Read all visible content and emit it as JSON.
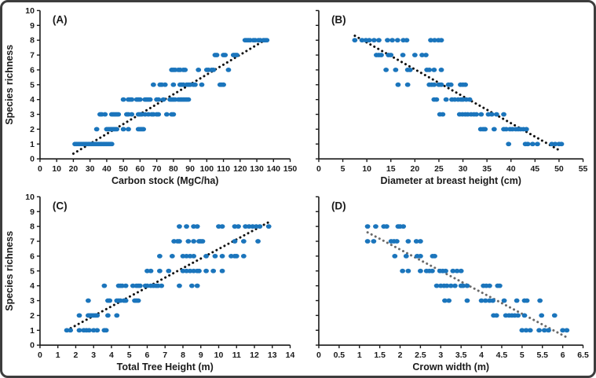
{
  "figure": {
    "background": "#ffffff",
    "border_color": "#3d3d3d"
  },
  "chart_data": [
    {
      "type": "scatter",
      "panel_label": "(A)",
      "xlabel": "Carbon stock (MgC/ha)",
      "ylabel": "Species richness",
      "xlim": [
        0,
        150
      ],
      "ylim": [
        0,
        10
      ],
      "xticks": [
        0,
        10,
        20,
        30,
        40,
        50,
        60,
        70,
        80,
        90,
        100,
        110,
        120,
        130,
        140,
        150
      ],
      "yticks": [
        0,
        1,
        2,
        3,
        4,
        5,
        6,
        7,
        8,
        9,
        10
      ],
      "show_y_tick_labels": true,
      "grid": false,
      "legend": "none",
      "point_color": "#1b75bc",
      "trend_color": "#111111",
      "trend_style": "dotted",
      "trendline": {
        "x1": 20,
        "y1": 0.35,
        "x2": 137,
        "y2": 8.15
      },
      "points_by_richness": {
        "1": [
          21,
          22,
          23,
          24,
          25,
          26,
          27,
          28,
          29,
          30,
          31,
          32,
          33,
          34,
          35,
          36,
          37,
          38,
          39,
          40,
          41,
          42,
          43
        ],
        "2": [
          34,
          40,
          41,
          42,
          43,
          44,
          45,
          46,
          50,
          53,
          59,
          60,
          61,
          62
        ],
        "3": [
          36,
          37,
          39,
          43,
          44,
          45,
          46,
          47,
          52,
          53,
          55,
          59,
          60,
          61,
          63,
          65,
          67,
          68,
          70,
          71,
          76,
          79,
          80
        ],
        "4": [
          50,
          53,
          54,
          55,
          58,
          59,
          60,
          63,
          64,
          65,
          66,
          70,
          71,
          74,
          78,
          79,
          80,
          81,
          83,
          84,
          85,
          86,
          87,
          88,
          89
        ],
        "5": [
          68,
          72,
          73,
          75,
          80,
          84,
          85,
          86,
          88,
          89,
          90,
          92,
          93,
          97,
          108,
          109,
          110
        ],
        "6": [
          79,
          80,
          81,
          83,
          84,
          86,
          87,
          95,
          100,
          101,
          103,
          104,
          113
        ],
        "7": [
          105,
          106,
          110,
          111,
          116,
          117,
          118
        ],
        "8": [
          123,
          124,
          125,
          126,
          128,
          129,
          131,
          132,
          134,
          135,
          136
        ]
      }
    },
    {
      "type": "scatter",
      "panel_label": "(B)",
      "xlabel": "Diameter at breast height (cm)",
      "ylabel": "",
      "xlim": [
        0,
        55
      ],
      "ylim": [
        0,
        10
      ],
      "xticks": [
        0,
        5,
        10,
        15,
        20,
        25,
        30,
        35,
        40,
        45,
        50,
        55
      ],
      "yticks": [
        0,
        1,
        2,
        3,
        4,
        5,
        6,
        7,
        8,
        9,
        10
      ],
      "show_y_tick_labels": false,
      "grid": false,
      "legend": "none",
      "point_color": "#1b75bc",
      "trend_color": "#111111",
      "trend_style": "dotted",
      "trendline": {
        "x1": 7.5,
        "y1": 8.3,
        "x2": 50.5,
        "y2": 0.5
      },
      "points_by_richness": {
        "1": [
          39.5,
          43,
          43.5,
          44.5,
          45.5,
          48.5,
          49.2,
          50,
          50.5
        ],
        "2": [
          33.7,
          34.2,
          34.6,
          36.5,
          38.5,
          39,
          39.8,
          40.3,
          41,
          41.5,
          42,
          42.6,
          43.2
        ],
        "3": [
          25.2,
          25.8,
          29.3,
          29.9,
          30.5,
          31,
          31.7,
          32.3,
          32.8,
          33.8,
          35.3,
          36,
          37,
          38.5
        ],
        "4": [
          24,
          24.5,
          26.5,
          27.7,
          28.3,
          29,
          29.6,
          30,
          30.7,
          31.4
        ],
        "5": [
          16.5,
          18.5,
          23,
          23.5,
          24,
          25,
          25.5,
          27,
          27.5,
          29.5,
          30,
          30.5
        ],
        "6": [
          14,
          16,
          18.5,
          19,
          22.5,
          23,
          24,
          25.5
        ],
        "7": [
          12,
          12.5,
          13,
          14.5,
          15,
          17.5,
          20,
          21.5,
          22.3
        ],
        "8": [
          7.5,
          9,
          9.8,
          10.5,
          11.5,
          12.5,
          14.3,
          15.3,
          16.4,
          17.6,
          18.3,
          23.3,
          24.1,
          24.9,
          25.5
        ]
      }
    },
    {
      "type": "scatter",
      "panel_label": "(C)",
      "xlabel": "Total Tree Height (m)",
      "ylabel": "Species richness",
      "xlim": [
        0,
        14
      ],
      "ylim": [
        0,
        10
      ],
      "xticks": [
        0,
        1,
        2,
        3,
        4,
        5,
        6,
        7,
        8,
        9,
        10,
        11,
        12,
        13,
        14
      ],
      "yticks": [
        0,
        1,
        2,
        3,
        4,
        5,
        6,
        7,
        8,
        9,
        10
      ],
      "show_y_tick_labels": true,
      "grid": false,
      "legend": "none",
      "point_color": "#1b75bc",
      "trend_color": "#111111",
      "trend_style": "dotted",
      "trendline": {
        "x1": 1.5,
        "y1": 1.0,
        "x2": 12.9,
        "y2": 8.35
      },
      "points_by_richness": {
        "1": [
          1.5,
          1.7,
          2.2,
          2.45,
          2.6,
          2.75,
          3.0,
          3.2,
          3.6,
          3.7
        ],
        "2": [
          2.2,
          2.7,
          2.8,
          2.9,
          3.0,
          3.1,
          3.2,
          3.8,
          4.3
        ],
        "3": [
          2.7,
          3.8,
          3.9,
          4.3,
          4.4,
          4.5,
          4.7,
          4.8,
          5.3,
          5.4,
          5.5
        ],
        "4": [
          3.6,
          4.4,
          4.5,
          4.6,
          4.8,
          5.2,
          5.4,
          5.5,
          5.6,
          5.9,
          6.0,
          6.2,
          6.35,
          6.5,
          6.6,
          6.8,
          7.8,
          8.5,
          8.8
        ],
        "5": [
          6.0,
          6.2,
          6.7,
          7.2,
          8.0,
          8.2,
          8.4,
          8.6,
          8.8,
          8.9,
          9.3,
          9.7,
          10.2
        ],
        "6": [
          6.7,
          7.4,
          8.0,
          8.2,
          8.4,
          8.6,
          9.3,
          9.8,
          10.2,
          10.7,
          10.9,
          11.0,
          11.4
        ],
        "7": [
          7.5,
          7.7,
          7.8,
          8.3,
          8.6,
          8.9,
          9.0,
          9.1,
          10.9,
          11.4,
          12.2
        ],
        "8": [
          7.8,
          8.2,
          8.6,
          8.8,
          10.0,
          10.2,
          10.9,
          11.1,
          11.5,
          11.7,
          11.9,
          12.1,
          12.3,
          12.8
        ]
      }
    },
    {
      "type": "scatter",
      "panel_label": "(D)",
      "xlabel": "Crown width (m)",
      "ylabel": "",
      "xlim": [
        0,
        6.5
      ],
      "ylim": [
        0,
        10
      ],
      "xticks": [
        0,
        0.5,
        1,
        1.5,
        2,
        2.5,
        3,
        3.5,
        4,
        4.5,
        5,
        5.5,
        6,
        6.5
      ],
      "yticks": [
        0,
        1,
        2,
        3,
        4,
        5,
        6,
        7,
        8,
        9,
        10
      ],
      "show_y_tick_labels": false,
      "grid": false,
      "legend": "none",
      "point_color": "#1b75bc",
      "trend_color": "#6a6a6a",
      "trend_style": "dotted",
      "trendline": {
        "x1": 1.2,
        "y1": 7.6,
        "x2": 6.15,
        "y2": 0.45
      },
      "points_by_richness": {
        "1": [
          5.0,
          5.1,
          5.2,
          5.42,
          5.55,
          5.65,
          6.0,
          6.1
        ],
        "2": [
          4.3,
          4.37,
          4.6,
          4.68,
          4.75,
          4.82,
          4.9,
          5.06,
          5.48,
          5.8
        ],
        "3": [
          3.1,
          3.2,
          3.65,
          4.0,
          4.1,
          4.2,
          4.28,
          4.56,
          4.87,
          5.06,
          5.12,
          5.44
        ],
        "4": [
          2.9,
          3.0,
          3.08,
          3.15,
          3.25,
          3.35,
          3.5,
          3.55,
          3.65,
          4.05,
          4.12,
          4.2,
          4.4,
          4.45
        ],
        "5": [
          2.06,
          2.2,
          2.5,
          2.65,
          2.72,
          2.79,
          2.98,
          3.05,
          3.12,
          3.3,
          3.4,
          3.5
        ],
        "6": [
          1.87,
          2.15,
          2.42,
          2.5,
          2.8,
          2.85
        ],
        "7": [
          1.2,
          1.35,
          1.78,
          1.85,
          1.92,
          2.2,
          2.4,
          2.5
        ],
        "8": [
          1.2,
          1.4,
          1.6,
          1.67,
          1.95,
          2.0,
          2.08
        ]
      }
    }
  ]
}
